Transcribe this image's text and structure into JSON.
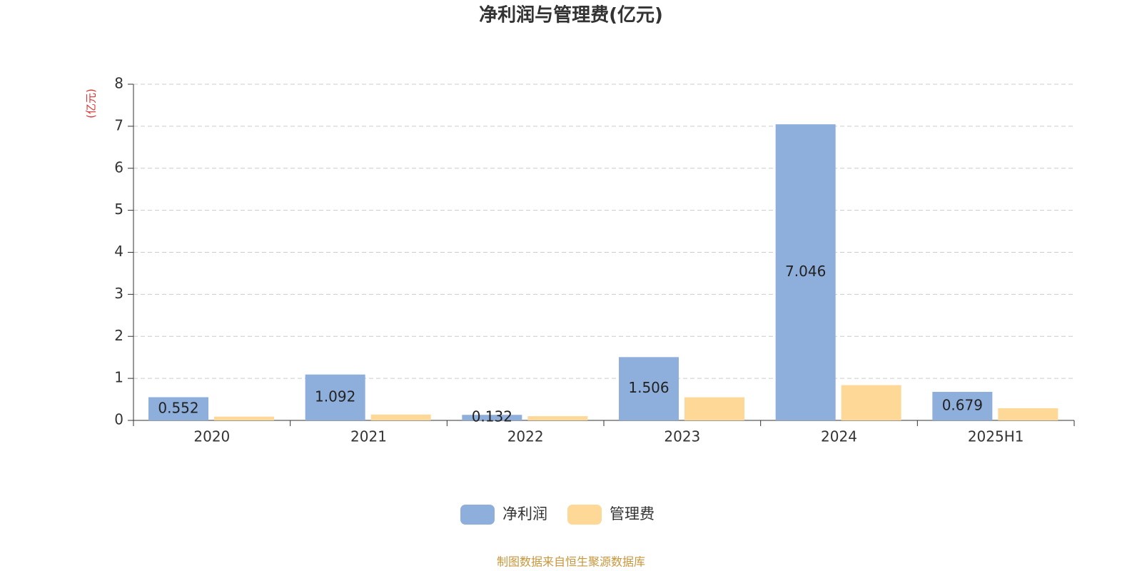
{
  "chart_data": {
    "type": "bar",
    "title": "净利润与管理费(亿元)",
    "y_label": "(亿元)",
    "categories": [
      "2020",
      "2021",
      "2022",
      "2023",
      "2024",
      "2025H1"
    ],
    "series": [
      {
        "name": "净利润",
        "color": "#8eaedb",
        "values": [
          0.552,
          1.092,
          0.132,
          1.506,
          7.046,
          0.679
        ]
      },
      {
        "name": "管理费",
        "color": "#fdd897",
        "values": [
          0.09,
          0.14,
          0.1,
          0.55,
          0.84,
          0.29
        ]
      }
    ],
    "ylim": [
      0,
      8
    ],
    "yticks": [
      0,
      1,
      2,
      3,
      4,
      5,
      6,
      7,
      8
    ],
    "grid": true,
    "source": "制图数据来自恒生聚源数据库"
  }
}
